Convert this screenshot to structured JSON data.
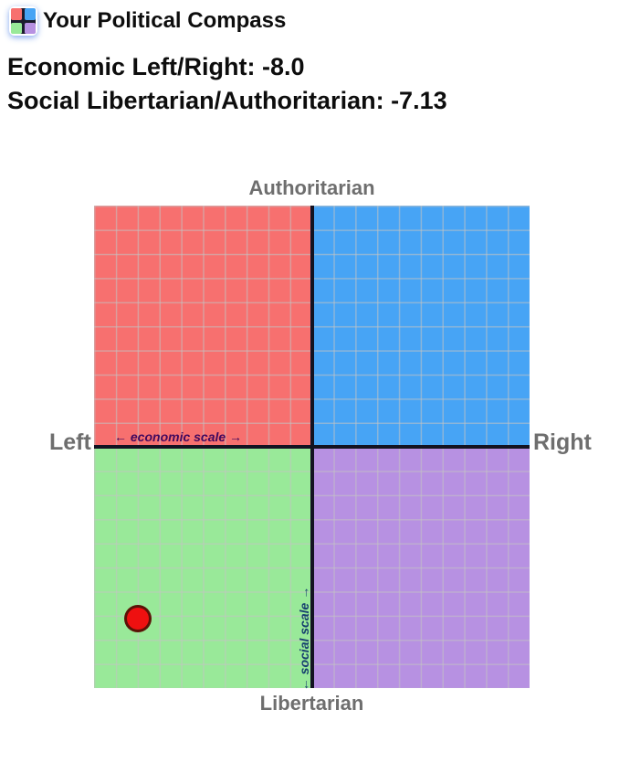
{
  "header": {
    "title": "Your Political Compass"
  },
  "scores": {
    "economic": "Economic Left/Right: -8.0",
    "social": "Social Libertarian/Authoritarian: -7.13"
  },
  "colors": {
    "quadrant_authoritarian_left": "#f7706f",
    "quadrant_authoritarian_right": "#47a4f5",
    "quadrant_libertarian_left": "#99e999",
    "quadrant_libertarian_right": "#b791e2",
    "axis": "#131322",
    "outside_labels": "#6e6e6e",
    "economic_scale_text": "#41095e",
    "social_scale_text": "#17406f"
  },
  "chart_data": {
    "type": "scatter",
    "title": "Political compass quadrant chart",
    "x_axis": {
      "label_left": "Left",
      "label_right": "Right",
      "scale_label": "← economic scale →",
      "range": [
        -10,
        10
      ],
      "gridline_step": 1
    },
    "y_axis": {
      "label_top": "Authoritarian",
      "label_bottom": "Libertarian",
      "scale_label": "← social scale →",
      "range": [
        -10,
        10
      ],
      "gridline_step": 1
    },
    "grid": true,
    "legend": false,
    "points": [
      {
        "name": "result-marker",
        "x": -8.0,
        "y": -7.13,
        "color": "#ee1010"
      }
    ]
  }
}
